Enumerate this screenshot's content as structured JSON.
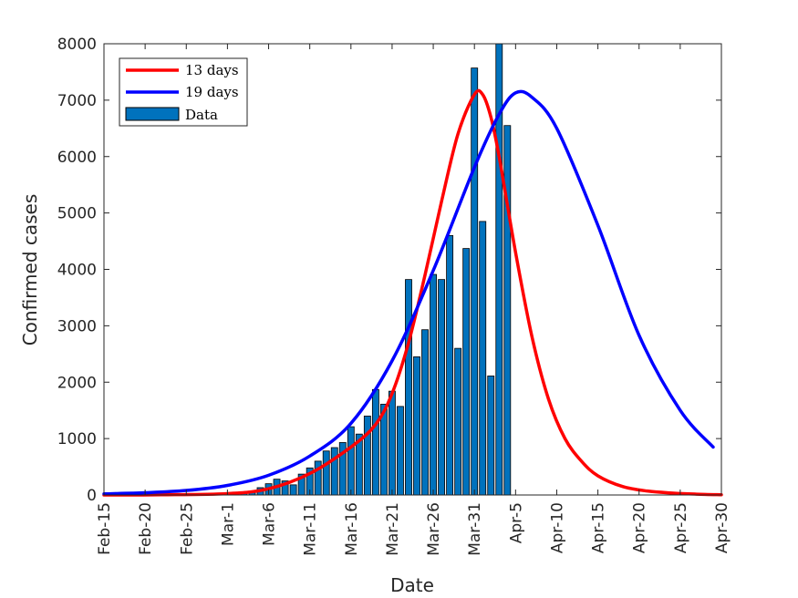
{
  "chart_data": {
    "type": "bar",
    "xlabel": "Date",
    "ylabel": "Confirmed cases",
    "xlim": [
      "Feb-15",
      "Apr-30"
    ],
    "ylim": [
      0,
      8000
    ],
    "x_tick_labels": [
      "Feb-15",
      "Feb-20",
      "Feb-25",
      "Mar-1",
      "Mar-6",
      "Mar-11",
      "Mar-16",
      "Mar-21",
      "Mar-26",
      "Mar-31",
      "Apr-5",
      "Apr-10",
      "Apr-15",
      "Apr-20",
      "Apr-25",
      "Apr-30"
    ],
    "y_ticks": [
      0,
      1000,
      2000,
      3000,
      4000,
      5000,
      6000,
      7000,
      8000
    ],
    "grid": false,
    "legend_position": "top-left",
    "legend": [
      "13 days",
      "19 days",
      "Data"
    ],
    "colors": {
      "curve_13": "#ff0000",
      "curve_19": "#0000ff",
      "bars": "#0072bd",
      "bar_edge": "#000000"
    },
    "bars": {
      "name": "Data",
      "dates": [
        "Feb-25",
        "Feb-26",
        "Feb-27",
        "Feb-28",
        "Feb-29",
        "Mar-1",
        "Mar-2",
        "Mar-3",
        "Mar-4",
        "Mar-5",
        "Mar-6",
        "Mar-7",
        "Mar-8",
        "Mar-9",
        "Mar-10",
        "Mar-11",
        "Mar-12",
        "Mar-13",
        "Mar-14",
        "Mar-15",
        "Mar-16",
        "Mar-17",
        "Mar-18",
        "Mar-19",
        "Mar-20",
        "Mar-21",
        "Mar-22",
        "Mar-23",
        "Mar-24",
        "Mar-25",
        "Mar-26",
        "Mar-27",
        "Mar-28",
        "Mar-29",
        "Mar-30",
        "Mar-31",
        "Apr-1",
        "Apr-2",
        "Apr-3",
        "Apr-4"
      ],
      "values": [
        3,
        5,
        8,
        10,
        15,
        25,
        35,
        40,
        65,
        130,
        200,
        280,
        250,
        180,
        370,
        480,
        600,
        780,
        840,
        930,
        1210,
        1080,
        1400,
        1870,
        1610,
        1840,
        1570,
        3820,
        2450,
        2930,
        3910,
        3820,
        4600,
        2600,
        4370,
        7570,
        4850,
        2110,
        8000,
        6550
      ]
    },
    "series": [
      {
        "name": "13 days",
        "x": [
          "Feb-15",
          "Feb-22",
          "Mar-1",
          "Mar-6",
          "Mar-11",
          "Mar-16",
          "Mar-19",
          "Mar-21",
          "Mar-23",
          "Mar-25",
          "Mar-27",
          "Mar-29",
          "Mar-31",
          "Apr-1",
          "Apr-2",
          "Apr-3",
          "Apr-5",
          "Apr-7",
          "Apr-9",
          "Apr-11",
          "Apr-13",
          "Apr-15",
          "Apr-18",
          "Apr-21",
          "Apr-24",
          "Apr-27",
          "Apr-30"
        ],
        "values": [
          0,
          3,
          25,
          110,
          380,
          850,
          1250,
          1800,
          2700,
          3900,
          5200,
          6400,
          7100,
          7100,
          6700,
          6000,
          4300,
          2800,
          1700,
          1000,
          600,
          340,
          150,
          70,
          35,
          15,
          5
        ]
      },
      {
        "name": "19 days",
        "x": [
          "Feb-15",
          "Feb-20",
          "Feb-25",
          "Mar-1",
          "Mar-6",
          "Mar-11",
          "Mar-16",
          "Mar-21",
          "Mar-26",
          "Mar-31",
          "Apr-3",
          "Apr-5",
          "Apr-7",
          "Apr-10",
          "Apr-15",
          "Apr-20",
          "Apr-25",
          "Apr-29"
        ],
        "values": [
          20,
          40,
          80,
          170,
          350,
          690,
          1270,
          2380,
          3980,
          5810,
          6750,
          7130,
          7050,
          6500,
          4780,
          2830,
          1500,
          850
        ]
      }
    ]
  }
}
